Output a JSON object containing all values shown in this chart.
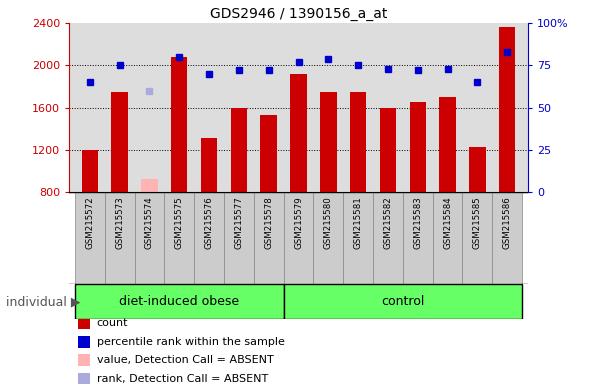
{
  "title": "GDS2946 / 1390156_a_at",
  "samples": [
    "GSM215572",
    "GSM215573",
    "GSM215574",
    "GSM215575",
    "GSM215576",
    "GSM215577",
    "GSM215578",
    "GSM215579",
    "GSM215580",
    "GSM215581",
    "GSM215582",
    "GSM215583",
    "GSM215584",
    "GSM215585",
    "GSM215586"
  ],
  "count_values": [
    1200,
    1750,
    null,
    2075,
    1310,
    1600,
    1530,
    1920,
    1750,
    1750,
    1600,
    1650,
    1700,
    1230,
    2360
  ],
  "count_absent": [
    null,
    null,
    920,
    null,
    null,
    null,
    null,
    null,
    null,
    null,
    null,
    null,
    null,
    null,
    null
  ],
  "rank_values": [
    65,
    75,
    null,
    80,
    70,
    72,
    72,
    77,
    79,
    75,
    73,
    72,
    73,
    65,
    83
  ],
  "rank_absent": [
    null,
    null,
    60,
    null,
    null,
    null,
    null,
    null,
    null,
    null,
    null,
    null,
    null,
    null,
    null
  ],
  "n_obese": 7,
  "ylim_left": [
    800,
    2400
  ],
  "ylim_right": [
    0,
    100
  ],
  "yticks_left": [
    800,
    1200,
    1600,
    2000,
    2400
  ],
  "yticks_right": [
    0,
    25,
    50,
    75,
    100
  ],
  "bar_color": "#cc0000",
  "absent_bar_color": "#ffb3b3",
  "rank_color": "#0000cc",
  "rank_absent_color": "#aaaadd",
  "grid_color": "#000000",
  "plot_bg_color": "#dddddd",
  "xtick_bg_color": "#cccccc",
  "group_color": "#66ff66",
  "legend_items": [
    {
      "label": "count",
      "color": "#cc0000"
    },
    {
      "label": "percentile rank within the sample",
      "color": "#0000cc"
    },
    {
      "label": "value, Detection Call = ABSENT",
      "color": "#ffb3b3"
    },
    {
      "label": "rank, Detection Call = ABSENT",
      "color": "#aaaadd"
    }
  ]
}
